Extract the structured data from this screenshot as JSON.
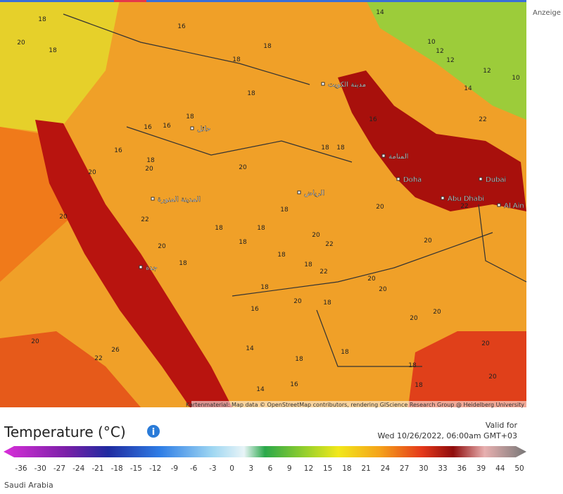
{
  "header": {
    "aside": "Anzeige"
  },
  "map": {
    "attribution": "Kartenmaterial: Map data © OpenStreetMap contributors, rendering GIScience Research Group @ Heidelberg University",
    "cities": [
      "Doha",
      "Dubai",
      "Abu Dhabi",
      "Al Ain",
      "الرياض",
      "المدينة المنورة",
      "جدة",
      "حائل",
      "مدينة الكويت",
      "المنامة"
    ],
    "temperatures": [
      16,
      18,
      18,
      18,
      18,
      16,
      16,
      16,
      18,
      20,
      20,
      18,
      18,
      20,
      20,
      22,
      20,
      18,
      18,
      18,
      18,
      20,
      22,
      18,
      18,
      22,
      18,
      18,
      20,
      18,
      16,
      14,
      18,
      18,
      18,
      18,
      16,
      14,
      20,
      20,
      20,
      20,
      20,
      22,
      22,
      20,
      22,
      26,
      20,
      20,
      20,
      16,
      14,
      10,
      12,
      12,
      12,
      10,
      14,
      20,
      18,
      18
    ]
  },
  "legend": {
    "title": "Temperature (°C)",
    "valid_label": "Valid for",
    "valid_time": "Wed 10/26/2022, 06:00am GMT+03",
    "ticks": [
      -36,
      -30,
      -27,
      -24,
      -21,
      -18,
      -15,
      -12,
      -9,
      -6,
      -3,
      0,
      3,
      6,
      9,
      12,
      15,
      18,
      21,
      24,
      27,
      30,
      33,
      36,
      39,
      44,
      50
    ],
    "region": "Saudi Arabia"
  }
}
